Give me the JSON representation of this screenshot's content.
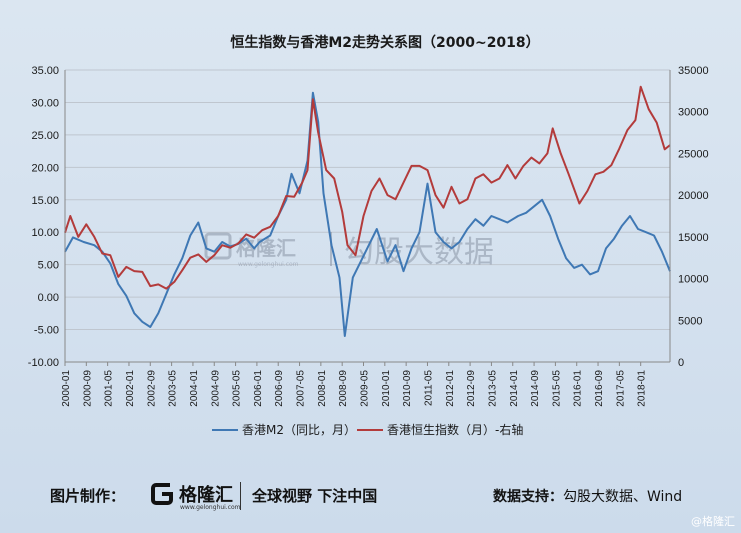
{
  "watermark": {
    "brand": "格隆汇",
    "url": "www.gelonghui.com",
    "data": "勾股大数据"
  },
  "footer": {
    "label": "图片制作：",
    "brand": "格隆汇",
    "brand_url": "www.gelonghui.com",
    "slogan": "全球视野 下注中国",
    "source_label": "数据支持：",
    "source_value": "勾股大数据、Wind",
    "corner": "@格隆汇"
  },
  "colors": {
    "m2": "#3f78b4",
    "hsi": "#b33b3b",
    "grid": "#bfc6cf"
  },
  "chart_data": {
    "type": "line",
    "title": "恒生指数与香港M2走势关系图（2000~2018）",
    "x_tick_labels": [
      "2000-01",
      "2000-09",
      "2001-05",
      "2002-01",
      "2002-09",
      "2003-05",
      "2004-01",
      "2004-09",
      "2005-05",
      "2006-01",
      "2006-09",
      "2007-05",
      "2008-01",
      "2008-09",
      "2009-05",
      "2010-01",
      "2010-09",
      "2011-05",
      "2012-01",
      "2012-09",
      "2013-05",
      "2014-01",
      "2014-09",
      "2015-05",
      "2016-01",
      "2016-09",
      "2017-05",
      "2018-01"
    ],
    "x_range": [
      "2000-01",
      "2018-12"
    ],
    "y_left": {
      "min": -10,
      "max": 35,
      "step": 5,
      "tick_labels": [
        "-10.00",
        "-5.00",
        "0.00",
        "5.00",
        "10.00",
        "15.00",
        "20.00",
        "25.00",
        "30.00",
        "35.00"
      ]
    },
    "y_right": {
      "min": 0,
      "max": 35000,
      "step": 5000,
      "tick_labels": [
        "0",
        "5000",
        "10000",
        "15000",
        "20000",
        "25000",
        "30000",
        "35000"
      ]
    },
    "grid": "horizontal",
    "legend_position": "bottom",
    "series": [
      {
        "name": "香港M2（同比，月）",
        "axis": "left",
        "x": [
          "2000-01",
          "2000-04",
          "2000-08",
          "2000-12",
          "2001-03",
          "2001-06",
          "2001-09",
          "2001-12",
          "2002-03",
          "2002-06",
          "2002-09",
          "2002-12",
          "2003-03",
          "2003-06",
          "2003-09",
          "2003-12",
          "2004-03",
          "2004-06",
          "2004-09",
          "2004-12",
          "2005-03",
          "2005-06",
          "2005-09",
          "2005-12",
          "2006-02",
          "2006-06",
          "2006-09",
          "2006-12",
          "2007-02",
          "2007-05",
          "2007-08",
          "2007-10",
          "2007-12",
          "2008-02",
          "2008-05",
          "2008-08",
          "2008-10",
          "2009-01",
          "2009-04",
          "2009-07",
          "2009-10",
          "2010-02",
          "2010-05",
          "2010-08",
          "2010-11",
          "2011-02",
          "2011-05",
          "2011-08",
          "2011-11",
          "2012-02",
          "2012-05",
          "2012-08",
          "2012-11",
          "2013-02",
          "2013-05",
          "2013-08",
          "2013-11",
          "2014-03",
          "2014-06",
          "2014-09",
          "2014-12",
          "2015-03",
          "2015-06",
          "2015-09",
          "2015-12",
          "2016-03",
          "2016-06",
          "2016-09",
          "2016-12",
          "2017-03",
          "2017-06",
          "2017-09",
          "2017-12",
          "2018-03",
          "2018-06",
          "2018-09",
          "2018-12"
        ],
        "values": [
          7.0,
          9.2,
          8.5,
          8.0,
          7.0,
          5.2,
          2.0,
          0.2,
          -2.5,
          -3.8,
          -4.6,
          -2.5,
          0.5,
          3.5,
          6.0,
          9.5,
          11.5,
          7.5,
          7.0,
          8.5,
          7.8,
          8.2,
          9.0,
          7.5,
          8.5,
          9.5,
          12.5,
          15.0,
          19.0,
          16.0,
          21.0,
          31.5,
          27.0,
          16.0,
          8.0,
          3.0,
          -6.0,
          3.0,
          5.5,
          8.0,
          10.5,
          5.5,
          8.0,
          4.0,
          7.5,
          10.0,
          17.5,
          10.0,
          8.5,
          7.5,
          8.5,
          10.5,
          12.0,
          11.0,
          12.5,
          12.0,
          11.5,
          12.5,
          13.0,
          14.0,
          15.0,
          12.5,
          9.0,
          6.0,
          4.5,
          5.0,
          3.5,
          4.0,
          7.5,
          9.0,
          11.0,
          12.5,
          10.5,
          10.0,
          9.5,
          7.0,
          4.0
        ]
      },
      {
        "name": "香港恒生指数（月）-右轴",
        "axis": "right",
        "x": [
          "2000-01",
          "2000-03",
          "2000-06",
          "2000-09",
          "2000-12",
          "2001-03",
          "2001-06",
          "2001-09",
          "2001-12",
          "2002-03",
          "2002-06",
          "2002-09",
          "2002-12",
          "2003-03",
          "2003-06",
          "2003-09",
          "2003-12",
          "2004-03",
          "2004-06",
          "2004-09",
          "2004-12",
          "2005-03",
          "2005-06",
          "2005-09",
          "2005-12",
          "2006-03",
          "2006-06",
          "2006-09",
          "2006-12",
          "2007-03",
          "2007-06",
          "2007-08",
          "2007-10",
          "2007-12",
          "2008-03",
          "2008-06",
          "2008-09",
          "2008-11",
          "2009-02",
          "2009-05",
          "2009-08",
          "2009-11",
          "2010-02",
          "2010-05",
          "2010-08",
          "2010-11",
          "2011-02",
          "2011-05",
          "2011-08",
          "2011-11",
          "2012-02",
          "2012-05",
          "2012-08",
          "2012-11",
          "2013-02",
          "2013-05",
          "2013-08",
          "2013-11",
          "2014-02",
          "2014-05",
          "2014-08",
          "2014-11",
          "2015-02",
          "2015-04",
          "2015-07",
          "2015-10",
          "2016-02",
          "2016-05",
          "2016-08",
          "2016-11",
          "2017-02",
          "2017-05",
          "2017-08",
          "2017-11",
          "2018-01",
          "2018-04",
          "2018-07",
          "2018-10",
          "2018-12"
        ],
        "values": [
          15500,
          17500,
          15000,
          16500,
          15000,
          13000,
          12800,
          10200,
          11400,
          10900,
          10800,
          9100,
          9300,
          8800,
          9600,
          11000,
          12500,
          12900,
          12000,
          12800,
          14000,
          13700,
          14200,
          15300,
          14900,
          15800,
          16200,
          17500,
          19900,
          19800,
          21500,
          23000,
          31500,
          27500,
          23000,
          22000,
          18000,
          14000,
          12800,
          17500,
          20500,
          22000,
          20000,
          19500,
          21500,
          23500,
          23500,
          23000,
          20000,
          18500,
          21000,
          19000,
          19500,
          22000,
          22500,
          21500,
          22000,
          23600,
          22000,
          23500,
          24500,
          23800,
          25000,
          28000,
          25000,
          22500,
          19000,
          20500,
          22500,
          22800,
          23600,
          25600,
          27800,
          29000,
          33000,
          30300,
          28700,
          25500,
          26000
        ]
      }
    ],
    "legend": [
      "香港M2（同比，月）",
      "香港恒生指数（月）-右轴"
    ]
  }
}
